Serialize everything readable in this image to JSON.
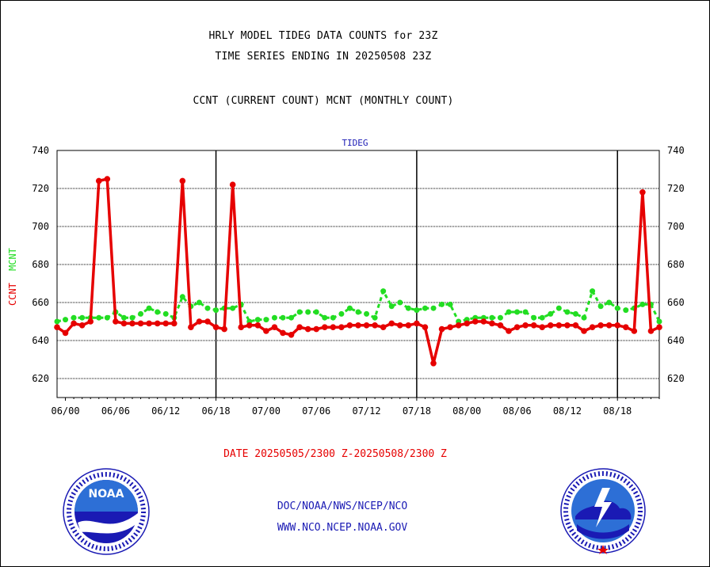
{
  "header": {
    "title_line1": "HRLY MODEL TIDEG DATA COUNTS for 23Z",
    "title_line2": "TIME SERIES ENDING IN 20250508 23Z",
    "title_line3": "CCNT (CURRENT COUNT) MCNT (MONTHLY COUNT)"
  },
  "footer": {
    "date_range": "DATE 20250505/2300 Z-20250508/2300 Z",
    "org": "DOC/NOAA/NWS/NCEP/NCO",
    "url": "WWW.NCO.NCEP.NOAA.GOV"
  },
  "logos": {
    "noaa_text": "NOAA",
    "nws_text": "NATIONAL WEATHER SERVICE"
  },
  "colors": {
    "ccnt": "#e60000",
    "mcnt": "#22dd22",
    "panel_label": "#1a1ab4",
    "grid": "#000000"
  },
  "chart_data": {
    "type": "line",
    "panel_label": "TIDEG",
    "ylabel_ccnt": "CCNT",
    "ylabel_mcnt": "MCNT",
    "ylim": [
      610,
      740
    ],
    "yticks": [
      620,
      640,
      660,
      680,
      700,
      720,
      740
    ],
    "xtick_labels": [
      "06/00",
      "06/06",
      "06/12",
      "06/18",
      "07/00",
      "07/06",
      "07/12",
      "07/18",
      "08/00",
      "08/06",
      "08/12",
      "08/18"
    ],
    "xlim_hours": [
      -1,
      71
    ],
    "day_separators_hours": [
      18,
      42,
      66
    ],
    "grid": true,
    "series": [
      {
        "name": "CCNT",
        "color": "#e60000",
        "values": [
          {
            "h": -1,
            "v": 647
          },
          {
            "h": 0,
            "v": 644
          },
          {
            "h": 1,
            "v": 649
          },
          {
            "h": 2,
            "v": 648
          },
          {
            "h": 3,
            "v": 650
          },
          {
            "h": 4,
            "v": 724
          },
          {
            "h": 5,
            "v": 725
          },
          {
            "h": 6,
            "v": 650
          },
          {
            "h": 7,
            "v": 649
          },
          {
            "h": 8,
            "v": 649
          },
          {
            "h": 9,
            "v": 649
          },
          {
            "h": 10,
            "v": 649
          },
          {
            "h": 11,
            "v": 649
          },
          {
            "h": 12,
            "v": 649
          },
          {
            "h": 13,
            "v": 649
          },
          {
            "h": 14,
            "v": 724
          },
          {
            "h": 15,
            "v": 647
          },
          {
            "h": 16,
            "v": 650
          },
          {
            "h": 17,
            "v": 650
          },
          {
            "h": 18,
            "v": 647
          },
          {
            "h": 19,
            "v": 646
          },
          {
            "h": 20,
            "v": 722
          },
          {
            "h": 21,
            "v": 647
          },
          {
            "h": 22,
            "v": 648
          },
          {
            "h": 23,
            "v": 648
          },
          {
            "h": 24,
            "v": 645
          },
          {
            "h": 25,
            "v": 647
          },
          {
            "h": 26,
            "v": 644
          },
          {
            "h": 27,
            "v": 643
          },
          {
            "h": 28,
            "v": 647
          },
          {
            "h": 29,
            "v": 646
          },
          {
            "h": 30,
            "v": 646
          },
          {
            "h": 31,
            "v": 647
          },
          {
            "h": 32,
            "v": 647
          },
          {
            "h": 33,
            "v": 647
          },
          {
            "h": 34,
            "v": 648
          },
          {
            "h": 35,
            "v": 648
          },
          {
            "h": 36,
            "v": 648
          },
          {
            "h": 37,
            "v": 648
          },
          {
            "h": 38,
            "v": 647
          },
          {
            "h": 39,
            "v": 649
          },
          {
            "h": 40,
            "v": 648
          },
          {
            "h": 41,
            "v": 648
          },
          {
            "h": 42,
            "v": 649
          },
          {
            "h": 43,
            "v": 647
          },
          {
            "h": 44,
            "v": 628
          },
          {
            "h": 45,
            "v": 646
          },
          {
            "h": 46,
            "v": 647
          },
          {
            "h": 47,
            "v": 648
          },
          {
            "h": 48,
            "v": 649
          },
          {
            "h": 49,
            "v": 650
          },
          {
            "h": 50,
            "v": 650
          },
          {
            "h": 51,
            "v": 649
          },
          {
            "h": 52,
            "v": 648
          },
          {
            "h": 53,
            "v": 645
          },
          {
            "h": 54,
            "v": 647
          },
          {
            "h": 55,
            "v": 648
          },
          {
            "h": 56,
            "v": 648
          },
          {
            "h": 57,
            "v": 647
          },
          {
            "h": 58,
            "v": 648
          },
          {
            "h": 59,
            "v": 648
          },
          {
            "h": 60,
            "v": 648
          },
          {
            "h": 61,
            "v": 648
          },
          {
            "h": 62,
            "v": 645
          },
          {
            "h": 63,
            "v": 647
          },
          {
            "h": 64,
            "v": 648
          },
          {
            "h": 65,
            "v": 648
          },
          {
            "h": 66,
            "v": 648
          },
          {
            "h": 67,
            "v": 647
          },
          {
            "h": 68,
            "v": 645
          },
          {
            "h": 69,
            "v": 718
          },
          {
            "h": 70,
            "v": 645
          },
          {
            "h": 71,
            "v": 647
          }
        ]
      },
      {
        "name": "MCNT",
        "color": "#22dd22",
        "values": [
          {
            "h": -1,
            "v": 650
          },
          {
            "h": 0,
            "v": 651
          },
          {
            "h": 1,
            "v": 652
          },
          {
            "h": 2,
            "v": 652
          },
          {
            "h": 3,
            "v": 652
          },
          {
            "h": 4,
            "v": 652
          },
          {
            "h": 5,
            "v": 652
          },
          {
            "h": 6,
            "v": 655
          },
          {
            "h": 7,
            "v": 652
          },
          {
            "h": 8,
            "v": 652
          },
          {
            "h": 9,
            "v": 654
          },
          {
            "h": 10,
            "v": 657
          },
          {
            "h": 11,
            "v": 655
          },
          {
            "h": 12,
            "v": 654
          },
          {
            "h": 13,
            "v": 652
          },
          {
            "h": 14,
            "v": 663
          },
          {
            "h": 15,
            "v": 658
          },
          {
            "h": 16,
            "v": 660
          },
          {
            "h": 17,
            "v": 657
          },
          {
            "h": 18,
            "v": 656
          },
          {
            "h": 19,
            "v": 657
          },
          {
            "h": 20,
            "v": 657
          },
          {
            "h": 21,
            "v": 659
          },
          {
            "h": 22,
            "v": 650
          },
          {
            "h": 23,
            "v": 651
          },
          {
            "h": 24,
            "v": 651
          },
          {
            "h": 25,
            "v": 652
          },
          {
            "h": 26,
            "v": 652
          },
          {
            "h": 27,
            "v": 652
          },
          {
            "h": 28,
            "v": 655
          },
          {
            "h": 29,
            "v": 655
          },
          {
            "h": 30,
            "v": 655
          },
          {
            "h": 31,
            "v": 652
          },
          {
            "h": 32,
            "v": 652
          },
          {
            "h": 33,
            "v": 654
          },
          {
            "h": 34,
            "v": 657
          },
          {
            "h": 35,
            "v": 655
          },
          {
            "h": 36,
            "v": 654
          },
          {
            "h": 37,
            "v": 652
          },
          {
            "h": 38,
            "v": 666
          },
          {
            "h": 39,
            "v": 658
          },
          {
            "h": 40,
            "v": 660
          },
          {
            "h": 41,
            "v": 657
          },
          {
            "h": 42,
            "v": 656
          },
          {
            "h": 43,
            "v": 657
          },
          {
            "h": 44,
            "v": 657
          },
          {
            "h": 45,
            "v": 659
          },
          {
            "h": 46,
            "v": 659
          },
          {
            "h": 47,
            "v": 650
          },
          {
            "h": 48,
            "v": 651
          },
          {
            "h": 49,
            "v": 652
          },
          {
            "h": 50,
            "v": 652
          },
          {
            "h": 51,
            "v": 652
          },
          {
            "h": 52,
            "v": 652
          },
          {
            "h": 53,
            "v": 655
          },
          {
            "h": 54,
            "v": 655
          },
          {
            "h": 55,
            "v": 655
          },
          {
            "h": 56,
            "v": 652
          },
          {
            "h": 57,
            "v": 652
          },
          {
            "h": 58,
            "v": 654
          },
          {
            "h": 59,
            "v": 657
          },
          {
            "h": 60,
            "v": 655
          },
          {
            "h": 61,
            "v": 654
          },
          {
            "h": 62,
            "v": 652
          },
          {
            "h": 63,
            "v": 666
          },
          {
            "h": 64,
            "v": 658
          },
          {
            "h": 65,
            "v": 660
          },
          {
            "h": 66,
            "v": 657
          },
          {
            "h": 67,
            "v": 656
          },
          {
            "h": 68,
            "v": 657
          },
          {
            "h": 69,
            "v": 659
          },
          {
            "h": 70,
            "v": 659
          },
          {
            "h": 71,
            "v": 650
          }
        ]
      }
    ]
  }
}
